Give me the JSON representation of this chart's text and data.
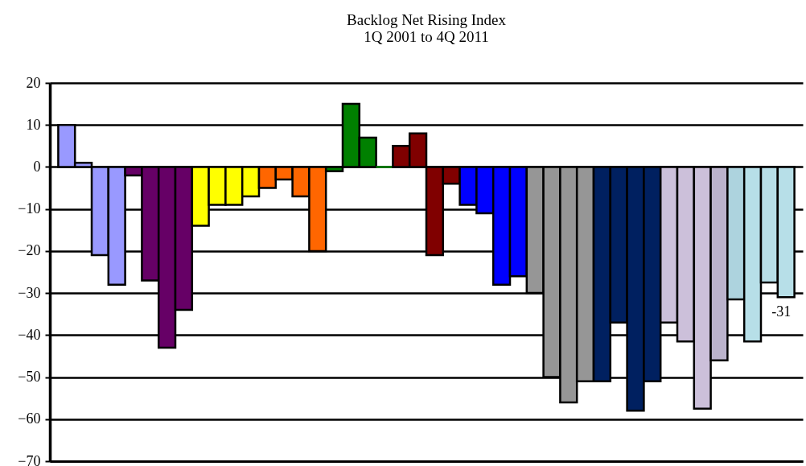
{
  "chart_data": {
    "type": "bar",
    "title": "Backlog Net Rising Index",
    "subtitle": "1Q 2001 to 4Q 2011",
    "categories": [
      null,
      null,
      null,
      null,
      null,
      null,
      null,
      null,
      null,
      null,
      null,
      null,
      null,
      null,
      null,
      null,
      null,
      null,
      null,
      null,
      null,
      null,
      null,
      null,
      null,
      null,
      null,
      null,
      null,
      null,
      null,
      null,
      null,
      null,
      null,
      null,
      null,
      null,
      null,
      null,
      null,
      null,
      null,
      null
    ],
    "values": [
      10,
      1,
      -21,
      -28,
      -2,
      -27,
      -43,
      -34,
      -14,
      -9,
      -9,
      -7,
      -5,
      -3,
      -7,
      -20,
      -1,
      15,
      7,
      0,
      5,
      8,
      -21,
      -4,
      -9,
      -11,
      -28,
      -26,
      -30,
      -50,
      -56,
      -51,
      -51,
      -37,
      -58,
      -51,
      -37,
      -41.5,
      -57.5,
      -46,
      -31.5,
      -41.5,
      -27.5,
      -31
    ],
    "colors": [
      "#9999ff",
      "#9999ff",
      "#9999ff",
      "#9999ff",
      "#660066",
      "#660066",
      "#660066",
      "#660066",
      "#ffff00",
      "#ffff00",
      "#ffff00",
      "#ffff00",
      "#ff6600",
      "#ff6600",
      "#ff6600",
      "#ff6600",
      "#008000",
      "#008000",
      "#008000",
      "#008000",
      "#800000",
      "#800000",
      "#800000",
      "#800000",
      "#0000ff",
      "#0000ff",
      "#0000ff",
      "#0000ff",
      "#969696",
      "#969696",
      "#969696",
      "#969696",
      "#002060",
      "#002060",
      "#002060",
      "#002060",
      "#ccc0da",
      "#ccc0da",
      "#ccc0da",
      "#bbb3cc",
      "#add3de",
      "#b7dfe8",
      "#b7dfe8",
      "#b7dfe8"
    ],
    "value_labels": [
      null,
      null,
      null,
      null,
      null,
      null,
      null,
      null,
      null,
      null,
      null,
      null,
      null,
      null,
      null,
      null,
      null,
      null,
      null,
      null,
      null,
      null,
      null,
      null,
      null,
      null,
      null,
      null,
      null,
      null,
      null,
      null,
      null,
      null,
      null,
      null,
      null,
      null,
      null,
      null,
      null,
      null,
      null,
      "-31"
    ],
    "ylim": [
      -70,
      20
    ],
    "yticks": [
      -70,
      -60,
      -50,
      -40,
      -30,
      -20,
      -10,
      0,
      10,
      20
    ],
    "grid": "y",
    "tick_labels": "y"
  }
}
